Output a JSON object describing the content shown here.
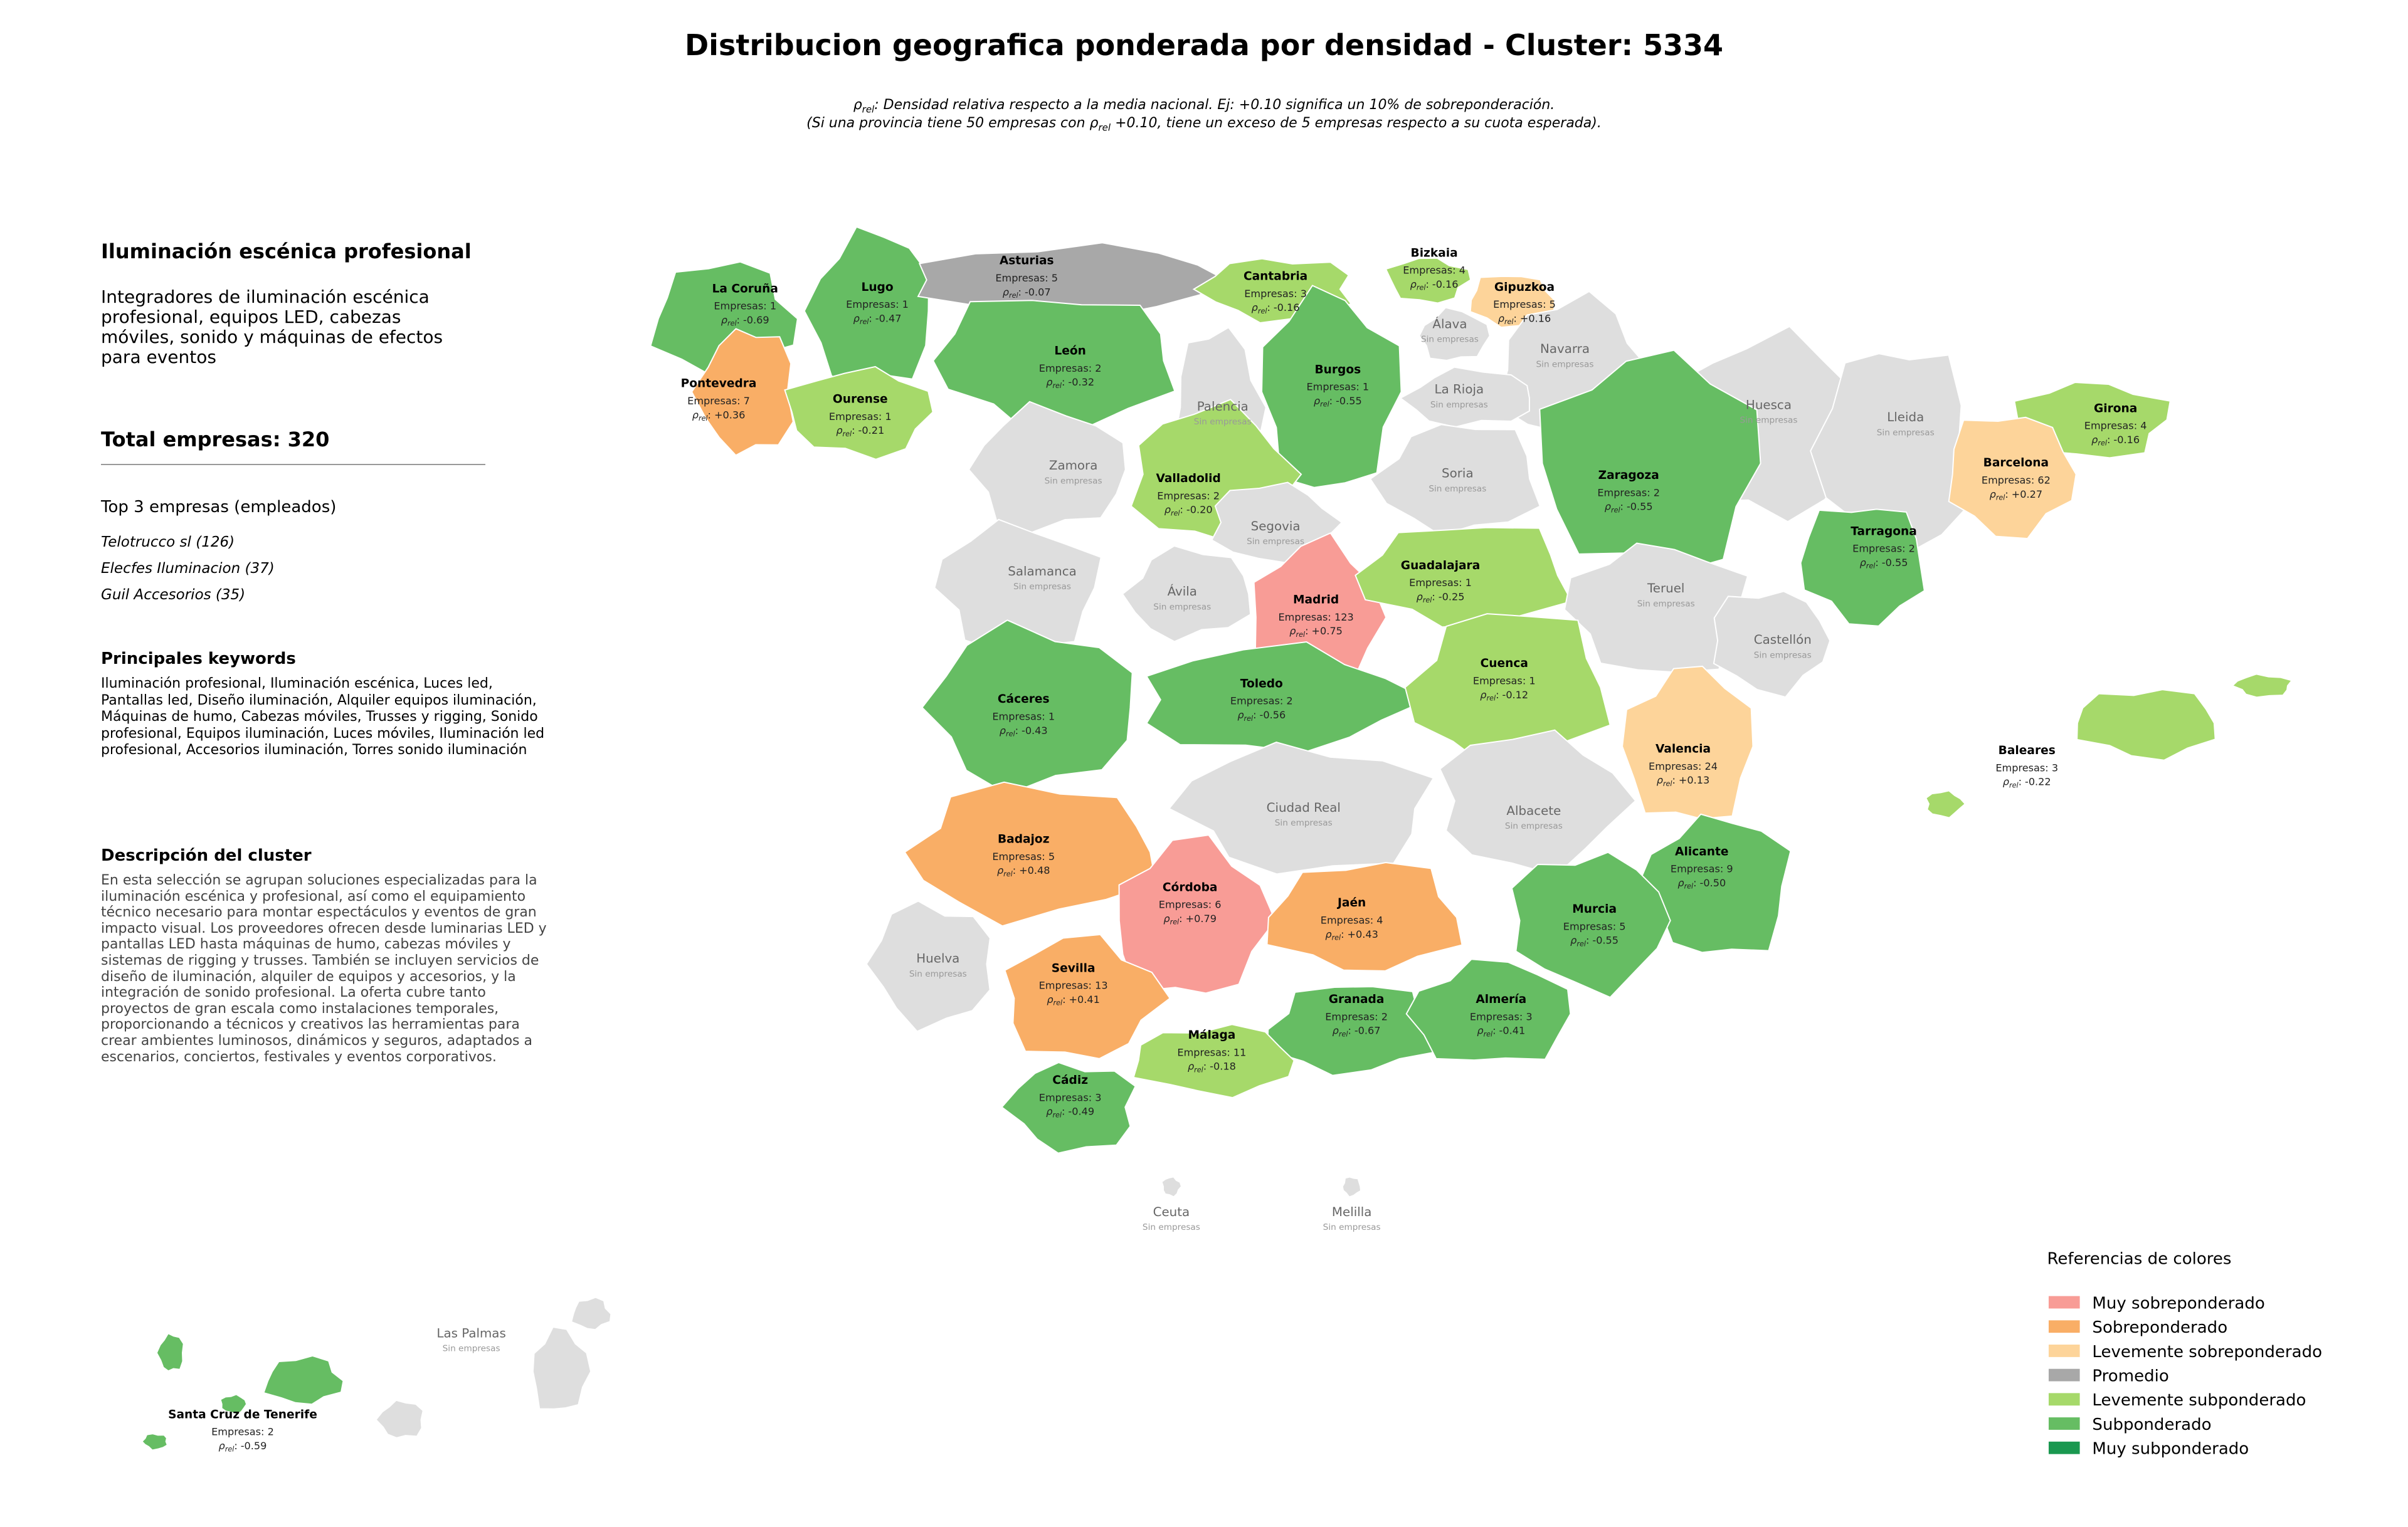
{
  "title": "Distribucion geografica ponderada por densidad - Cluster: 5334",
  "subtitle": [
    [
      {
        "text": "ρ"
      },
      {
        "text": "rel",
        "sub": true
      },
      {
        "text": ": Densidad relativa respecto a la media nacional. Ej: +0.10 significa un 10% de sobreponderación."
      }
    ],
    [
      {
        "text": "(Si una provincia tiene 50 empresas con "
      },
      {
        "text": "ρ"
      },
      {
        "text": "rel",
        "sub": true
      },
      {
        "text": " +0.10, tiene un exceso de 5 empresas respecto a su cuota esperada)."
      }
    ]
  ],
  "panel": {
    "title": "Iluminación escénica profesional",
    "description": "Integradores de iluminación escénica profesional, equipos LED, cabezas móviles, sonido y máquinas de efectos para eventos",
    "total": "Total empresas: 320",
    "top_heading": "Top 3 empresas (empleados)",
    "top": [
      "Telotrucco sl (126)",
      "Elecfes Iluminacion (37)",
      "Guil Accesorios (35)"
    ],
    "keywords_heading": "Principales keywords",
    "keywords": "Iluminación profesional, Iluminación escénica, Luces led, Pantallas led, Diseño iluminación, Alquiler equipos iluminación, Máquinas de humo, Cabezas móviles, Trusses y rigging, Sonido profesional, Equipos iluminación, Luces móviles, Iluminación led profesional, Accesorios iluminación, Torres sonido iluminación",
    "cluster_heading": "Descripción del cluster",
    "cluster_text": "En esta selección se agrupan soluciones especializadas para la iluminación escénica y profesional, así como el equipamiento técnico necesario para montar espectáculos y eventos de gran impacto visual. Los proveedores ofrecen desde luminarias LED y pantallas LED hasta máquinas de humo, cabezas móviles y sistemas de rigging y trusses. También se incluyen servicios de diseño de iluminación, alquiler de equipos y accesorios, y la integración de sonido profesional. La oferta cubre tanto proyectos de gran escala como instalaciones temporales, proporcionando a técnicos y creativos las herramientas para crear ambientes luminosos, dinámicos y seguros, adaptados a escenarios, conciertos, festivales y eventos corporativos."
  },
  "map": {
    "rho_symbol": "ρ",
    "rho_sub": "rel",
    "rho_sep": ":",
    "no_companies": "Sin empresas",
    "empty_color": "#dedede",
    "provinces": [
      {
        "name": "La Coruña",
        "empresas": "Empresas: 1",
        "rho": "-0.69",
        "level": 5
      },
      {
        "name": "Lugo",
        "empresas": "Empresas: 1",
        "rho": "-0.47",
        "level": 5
      },
      {
        "name": "Asturias",
        "empresas": "Empresas: 5",
        "rho": "-0.07",
        "level": 3
      },
      {
        "name": "Cantabria",
        "empresas": "Empresas: 3",
        "rho": "-0.16",
        "level": 4
      },
      {
        "name": "Bizkaia",
        "empresas": "Empresas: 4",
        "rho": "-0.16",
        "level": 4
      },
      {
        "name": "Gipuzkoa",
        "empresas": "Empresas: 5",
        "rho": "+0.16",
        "level": 2
      },
      {
        "name": "Álava"
      },
      {
        "name": "Navarra"
      },
      {
        "name": "Pontevedra",
        "empresas": "Empresas: 7",
        "rho": "+0.36",
        "level": 1
      },
      {
        "name": "Ourense",
        "empresas": "Empresas: 1",
        "rho": "-0.21",
        "level": 4
      },
      {
        "name": "León",
        "empresas": "Empresas: 2",
        "rho": "-0.32",
        "level": 5
      },
      {
        "name": "Burgos",
        "empresas": "Empresas: 1",
        "rho": "-0.55",
        "level": 5
      },
      {
        "name": "Palencia"
      },
      {
        "name": "La Rioja"
      },
      {
        "name": "Huesca"
      },
      {
        "name": "Lleida"
      },
      {
        "name": "Girona",
        "empresas": "Empresas: 4",
        "rho": "-0.16",
        "level": 4
      },
      {
        "name": "Barcelona",
        "empresas": "Empresas: 62",
        "rho": "+0.27",
        "level": 2
      },
      {
        "name": "Zamora"
      },
      {
        "name": "Valladolid",
        "empresas": "Empresas: 2",
        "rho": "-0.20",
        "level": 4
      },
      {
        "name": "Soria"
      },
      {
        "name": "Zaragoza",
        "empresas": "Empresas: 2",
        "rho": "-0.55",
        "level": 5
      },
      {
        "name": "Tarragona",
        "empresas": "Empresas: 2",
        "rho": "-0.55",
        "level": 5
      },
      {
        "name": "Salamanca"
      },
      {
        "name": "Segovia"
      },
      {
        "name": "Ávila"
      },
      {
        "name": "Madrid",
        "empresas": "Empresas: 123",
        "rho": "+0.75",
        "level": 0
      },
      {
        "name": "Guadalajara",
        "empresas": "Empresas: 1",
        "rho": "-0.25",
        "level": 4
      },
      {
        "name": "Teruel"
      },
      {
        "name": "Castellón"
      },
      {
        "name": "Cáceres",
        "empresas": "Empresas: 1",
        "rho": "-0.43",
        "level": 5
      },
      {
        "name": "Toledo",
        "empresas": "Empresas: 2",
        "rho": "-0.56",
        "level": 5
      },
      {
        "name": "Cuenca",
        "empresas": "Empresas: 1",
        "rho": "-0.12",
        "level": 4
      },
      {
        "name": "Valencia",
        "empresas": "Empresas: 24",
        "rho": "+0.13",
        "level": 2
      },
      {
        "name": "Baleares",
        "empresas": "Empresas: 3",
        "rho": "-0.22",
        "level": 4
      },
      {
        "name": "Ciudad Real"
      },
      {
        "name": "Albacete"
      },
      {
        "name": "Badajoz",
        "empresas": "Empresas: 5",
        "rho": "+0.48",
        "level": 1
      },
      {
        "name": "Córdoba",
        "empresas": "Empresas: 6",
        "rho": "+0.79",
        "level": 0
      },
      {
        "name": "Jaén",
        "empresas": "Empresas: 4",
        "rho": "+0.43",
        "level": 1
      },
      {
        "name": "Alicante",
        "empresas": "Empresas: 9",
        "rho": "-0.50",
        "level": 5
      },
      {
        "name": "Murcia",
        "empresas": "Empresas: 5",
        "rho": "-0.55",
        "level": 5
      },
      {
        "name": "Huelva"
      },
      {
        "name": "Sevilla",
        "empresas": "Empresas: 13",
        "rho": "+0.41",
        "level": 1
      },
      {
        "name": "Granada",
        "empresas": "Empresas: 2",
        "rho": "-0.67",
        "level": 5
      },
      {
        "name": "Almería",
        "empresas": "Empresas: 3",
        "rho": "-0.41",
        "level": 5
      },
      {
        "name": "Málaga",
        "empresas": "Empresas: 11",
        "rho": "-0.18",
        "level": 4
      },
      {
        "name": "Cádiz",
        "empresas": "Empresas: 3",
        "rho": "-0.49",
        "level": 5
      },
      {
        "name": "Ceuta"
      },
      {
        "name": "Melilla"
      },
      {
        "name": "Las Palmas"
      },
      {
        "name": "Santa Cruz de Tenerife",
        "empresas": "Empresas: 2",
        "rho": "-0.59",
        "level": 5
      }
    ]
  },
  "legend": {
    "title": "Referencias de colores",
    "items": [
      {
        "name": "Muy sobreponderado",
        "color": "#f89c96"
      },
      {
        "name": "Sobreponderado",
        "color": "#f9ae66"
      },
      {
        "name": "Levemente sobreponderado",
        "color": "#fdd49a"
      },
      {
        "name": "Promedio",
        "color": "#a8a8a8"
      },
      {
        "name": "Levemente subponderado",
        "color": "#a6d96a"
      },
      {
        "name": "Subponderado",
        "color": "#66bd63"
      },
      {
        "name": "Muy subponderado",
        "color": "#1a9850"
      }
    ]
  }
}
